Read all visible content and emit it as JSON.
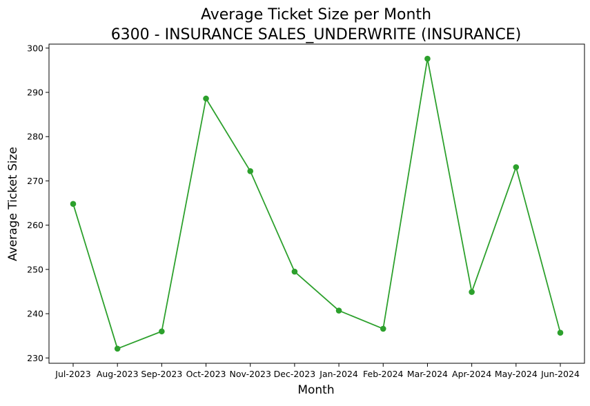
{
  "chart_data": {
    "type": "line",
    "title_lines": [
      "Average Ticket Size per Month",
      "6300 - INSURANCE SALES_UNDERWRITE (INSURANCE)"
    ],
    "xlabel": "Month",
    "ylabel": "Average Ticket Size",
    "categories": [
      "Jul-2023",
      "Aug-2023",
      "Sep-2023",
      "Oct-2023",
      "Nov-2023",
      "Dec-2023",
      "Jan-2024",
      "Feb-2024",
      "Mar-2024",
      "Apr-2024",
      "May-2024",
      "Jun-2024"
    ],
    "series": [
      {
        "values": [
          264.8,
          232.1,
          236.0,
          288.6,
          272.2,
          249.5,
          240.7,
          236.6,
          297.6,
          244.9,
          273.1,
          235.7
        ],
        "color": "#2ca02c",
        "marker": "circle"
      }
    ],
    "ylim": [
      228.8,
      300.9
    ],
    "yticks": [
      230,
      240,
      250,
      260,
      270,
      280,
      290,
      300
    ],
    "grid": false,
    "legend": "none"
  }
}
